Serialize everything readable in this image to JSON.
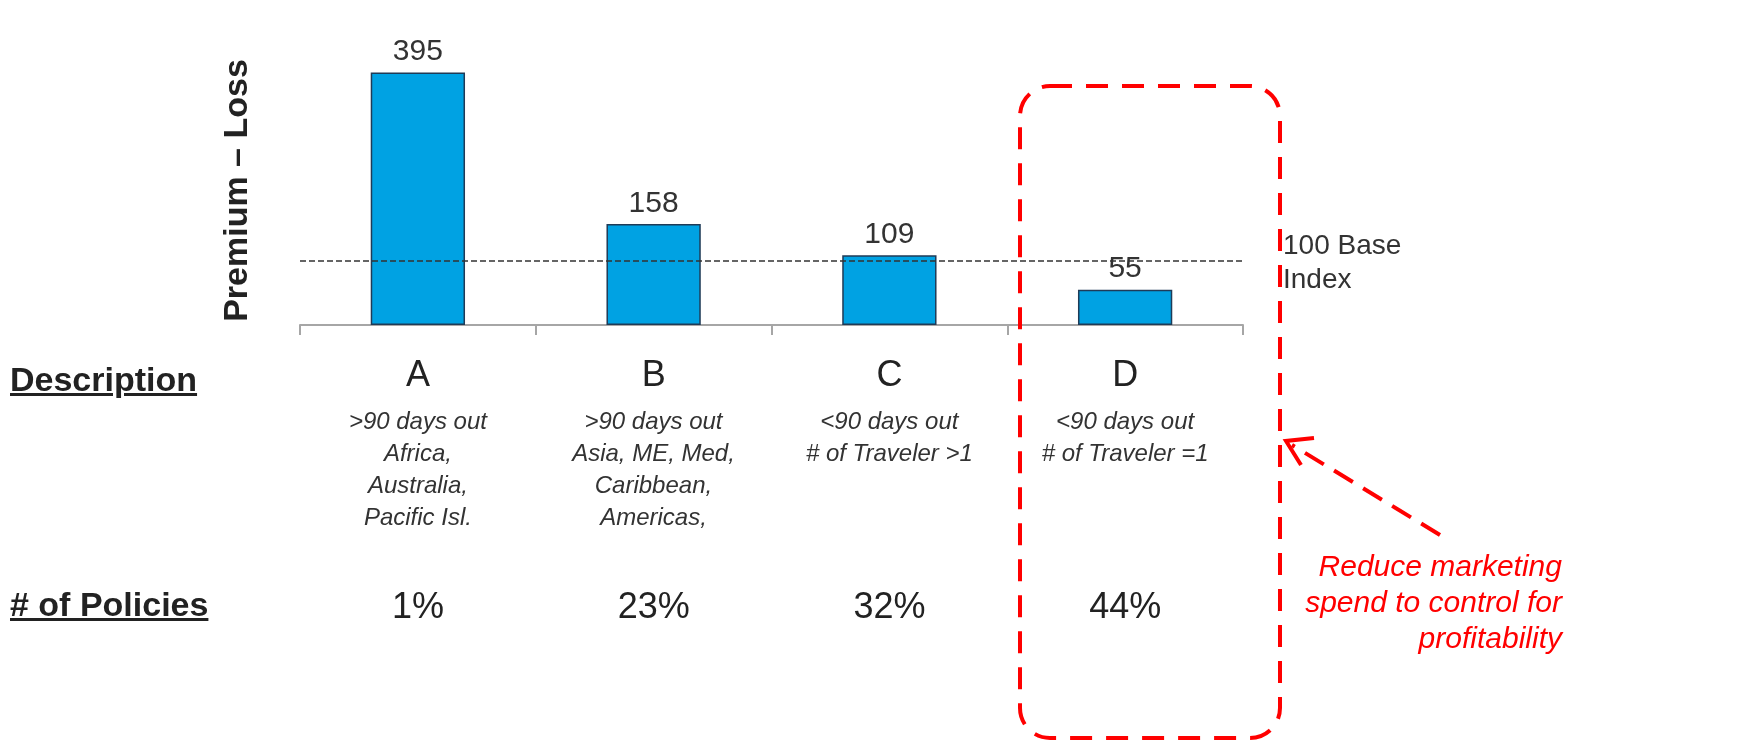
{
  "chart_data": {
    "type": "bar",
    "ylabel": "Premium – Loss",
    "categories": [
      "A",
      "B",
      "C",
      "D"
    ],
    "values": [
      395,
      158,
      109,
      55
    ],
    "color": "#00a2e3",
    "data_labels": true,
    "ref_lines": [
      {
        "axis": "y",
        "value": 100,
        "label": "100 Base Index",
        "color": "#333333",
        "line_style": "dashed"
      }
    ],
    "annotations": [
      "Description",
      ">90 days out\nAfrica,\nAustralia,\nPacific Isl.",
      ">90 days out\nAsia, ME, Med,\nCaribbean,\nAmericas,",
      "<90 days out\n# of Traveler >1",
      "<90 days out\n# of Traveler =1",
      "# of Policies",
      "1%",
      "23%",
      "32%",
      "44%",
      "Reduce marketing spend to control for profitability"
    ]
  }
}
